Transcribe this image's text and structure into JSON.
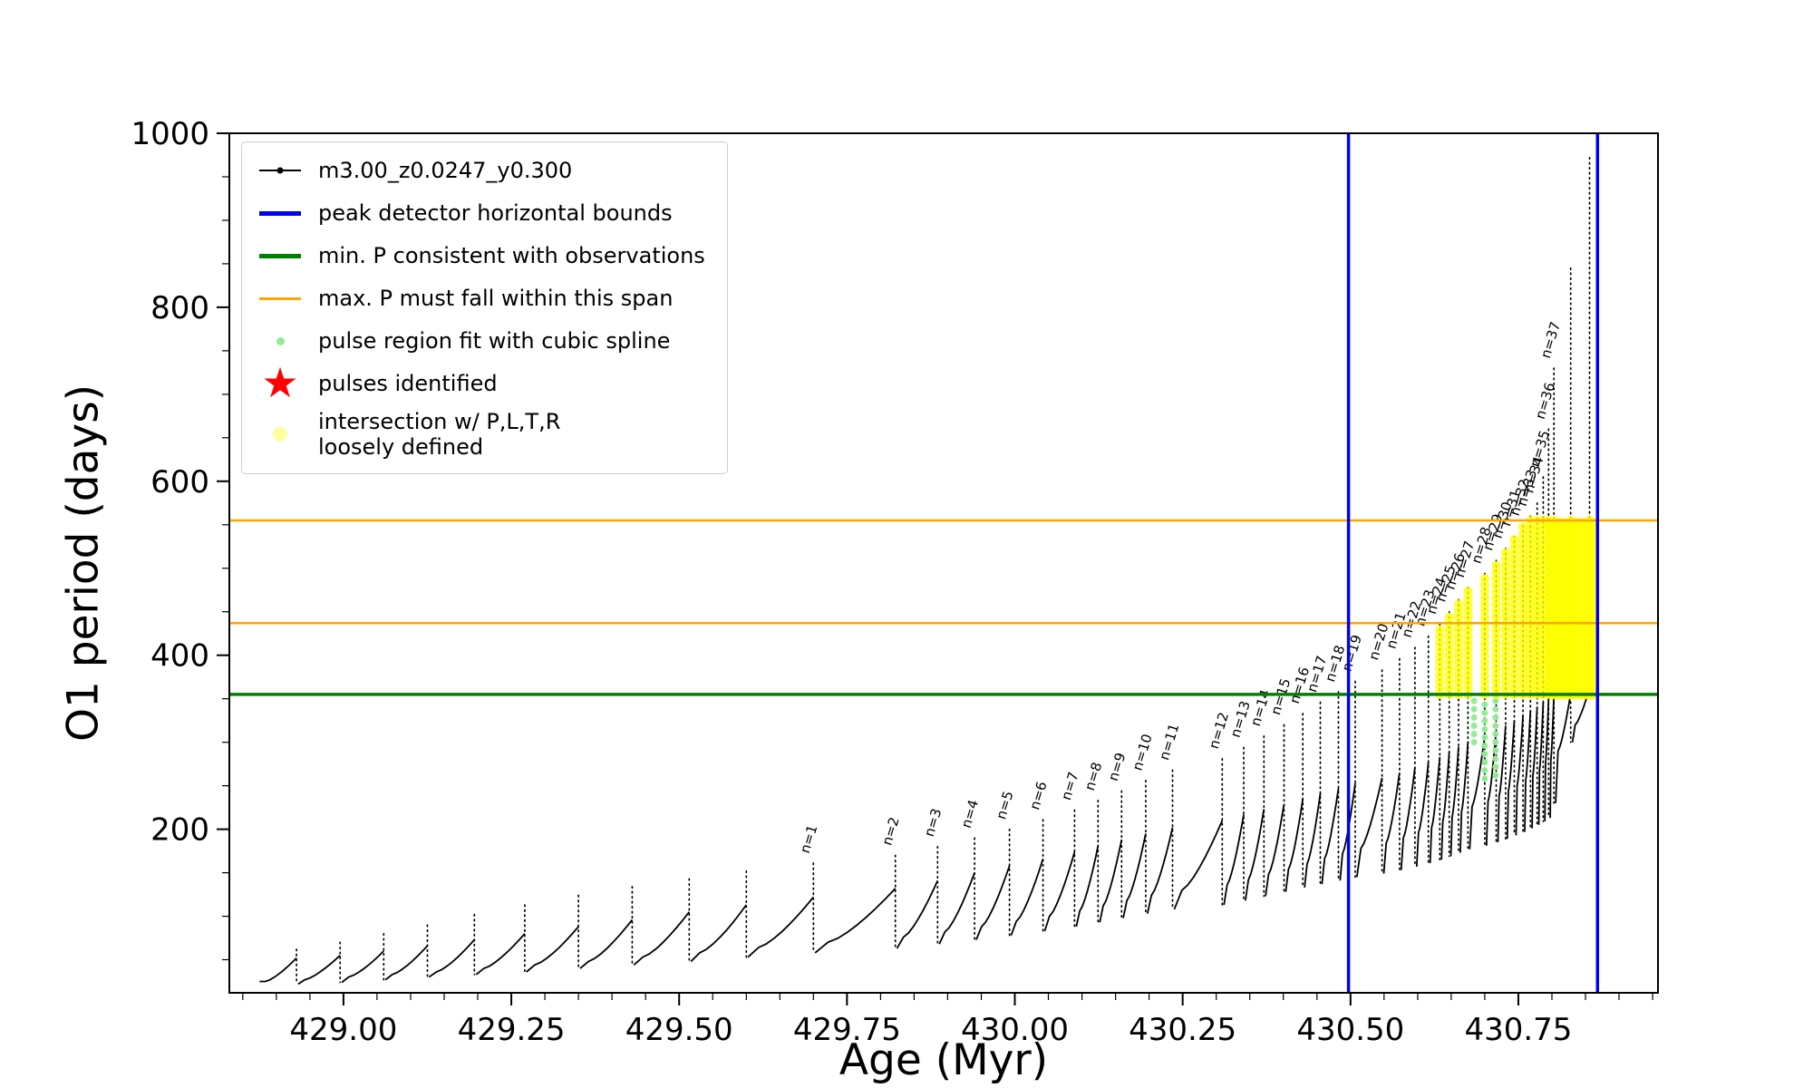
{
  "legend": {
    "star_glyph": "★",
    "items": [
      {
        "label": "m3.00_z0.0247_y0.300",
        "marker": "line-dot",
        "color": "#000000"
      },
      {
        "label": "peak detector horizontal bounds",
        "marker": "thick-line",
        "color": "#0000ee"
      },
      {
        "label": "min. P consistent with observations",
        "marker": "thick-line",
        "color": "#008000"
      },
      {
        "label": "max. P must fall within this span",
        "marker": "line",
        "color": "#ffa500"
      },
      {
        "label": "pulse region fit with cubic spline",
        "marker": "dot-small",
        "color": "#90ee90"
      },
      {
        "label": "pulses identified",
        "marker": "star",
        "color": "#ff0000"
      },
      {
        "label": "intersection w/ P,L,T,R\nloosely defined",
        "marker": "dot-large",
        "color": "#ffff9e"
      }
    ]
  },
  "chart_data": {
    "type": "line",
    "title": "",
    "xlabel": "Age (Myr)",
    "ylabel": "O1 period (days)",
    "series_label": "m3.00_z0.0247_y0.300",
    "xlim": [
      428.83,
      430.958
    ],
    "ylim": [
      12,
      1000
    ],
    "xticks": [
      429.0,
      429.25,
      429.5,
      429.75,
      430.0,
      430.25,
      430.5,
      430.75
    ],
    "xtick_labels": [
      "429.00",
      "429.25",
      "429.50",
      "429.75",
      "430.00",
      "430.25",
      "430.50",
      "430.75"
    ],
    "yticks": [
      200,
      400,
      600,
      800,
      1000
    ],
    "ytick_labels": [
      "200",
      "400",
      "600",
      "800",
      "1000"
    ],
    "minor_x_step": 0.05,
    "minor_y_step": 50,
    "grid": false,
    "legend_position": "upper left",
    "frame": {
      "l": 253,
      "t": 147,
      "r": 1829,
      "b": 1095
    },
    "colors": {
      "track": "#000000",
      "blue": "#0000ee",
      "green": "#008000",
      "orange": "#ffa500",
      "yellow": "#ffff00",
      "lightgreen": "#90ee90",
      "red": "#ff0000"
    },
    "hlines": [
      {
        "name": "min-P-line",
        "y": 355,
        "color": "#008000",
        "width": 3.5
      },
      {
        "name": "max-P-span-lower",
        "y": 437,
        "color": "#ffa500",
        "width": 2.5
      },
      {
        "name": "max-P-span-upper",
        "y": 555,
        "color": "#ffa500",
        "width": 2.5
      }
    ],
    "vlines": [
      {
        "name": "peak-detector-left-bound",
        "x": 430.497,
        "color": "#0000ee",
        "width": 3.5
      },
      {
        "name": "peak-detector-right-bound",
        "x": 430.868,
        "color": "#0000ee",
        "width": 3.5
      }
    ],
    "pulses": [
      {
        "t": 428.93,
        "lo": 25,
        "hi": 52,
        "peak": 62,
        "dip": 22
      },
      {
        "t": 428.995,
        "lo": 27,
        "hi": 55,
        "peak": 70,
        "dip": 24
      },
      {
        "t": 429.06,
        "lo": 30,
        "hi": 60,
        "peak": 80,
        "dip": 27
      },
      {
        "t": 429.125,
        "lo": 33,
        "hi": 66,
        "peak": 90,
        "dip": 30
      },
      {
        "t": 429.195,
        "lo": 36,
        "hi": 73,
        "peak": 102,
        "dip": 33
      },
      {
        "t": 429.27,
        "lo": 40,
        "hi": 80,
        "peak": 113,
        "dip": 36
      },
      {
        "t": 429.35,
        "lo": 44,
        "hi": 88,
        "peak": 124,
        "dip": 40
      },
      {
        "t": 429.43,
        "lo": 48,
        "hi": 96,
        "peak": 134,
        "dip": 44
      },
      {
        "t": 429.515,
        "lo": 53,
        "hi": 105,
        "peak": 143,
        "dip": 48
      },
      {
        "t": 429.6,
        "lo": 58,
        "hi": 113,
        "peak": 152,
        "dip": 53
      },
      {
        "n": 1,
        "label": "n=1",
        "t": 429.7,
        "lo": 64,
        "hi": 122,
        "peak": 161,
        "dip": 58
      },
      {
        "n": 2,
        "label": "n=2",
        "t": 429.822,
        "lo": 70,
        "hi": 132,
        "peak": 170,
        "dip": 63
      },
      {
        "n": 3,
        "label": "n=3",
        "t": 429.885,
        "lo": 76,
        "hi": 141,
        "peak": 180,
        "dip": 68
      },
      {
        "n": 4,
        "label": "n=4",
        "t": 429.94,
        "lo": 82,
        "hi": 150,
        "peak": 190,
        "dip": 73
      },
      {
        "n": 5,
        "label": "n=5",
        "t": 429.992,
        "lo": 88,
        "hi": 158,
        "peak": 200,
        "dip": 78
      },
      {
        "n": 6,
        "label": "n=6",
        "t": 430.042,
        "lo": 94,
        "hi": 166,
        "peak": 211,
        "dip": 83
      },
      {
        "n": 7,
        "label": "n=7",
        "t": 430.089,
        "lo": 100,
        "hi": 174,
        "peak": 222,
        "dip": 88
      },
      {
        "n": 8,
        "label": "n=8",
        "t": 430.124,
        "lo": 106,
        "hi": 181,
        "peak": 233,
        "dip": 93
      },
      {
        "n": 9,
        "label": "n=9",
        "t": 430.159,
        "lo": 112,
        "hi": 188,
        "peak": 244,
        "dip": 98
      },
      {
        "n": 10,
        "label": "n=10",
        "t": 430.195,
        "lo": 118,
        "hi": 195,
        "peak": 256,
        "dip": 103
      },
      {
        "n": 11,
        "label": "n=11",
        "t": 430.235,
        "lo": 124,
        "hi": 202,
        "peak": 268,
        "dip": 108
      },
      {
        "n": 12,
        "label": "n=12",
        "t": 430.309,
        "lo": 130,
        "hi": 210,
        "peak": 281,
        "dip": 113
      },
      {
        "n": 13,
        "label": "n=13",
        "t": 430.341,
        "lo": 136,
        "hi": 217,
        "peak": 294,
        "dip": 118
      },
      {
        "n": 14,
        "label": "n=14",
        "t": 430.371,
        "lo": 142,
        "hi": 223,
        "peak": 307,
        "dip": 123
      },
      {
        "n": 15,
        "label": "n=15",
        "t": 430.401,
        "lo": 148,
        "hi": 229,
        "peak": 320,
        "dip": 128
      },
      {
        "n": 16,
        "label": "n=16",
        "t": 430.429,
        "lo": 154,
        "hi": 235,
        "peak": 333,
        "dip": 133
      },
      {
        "n": 17,
        "label": "n=17",
        "t": 430.455,
        "lo": 160,
        "hi": 241,
        "peak": 346,
        "dip": 137
      },
      {
        "n": 18,
        "label": "n=18",
        "t": 430.482,
        "lo": 166,
        "hi": 247,
        "peak": 358,
        "dip": 141
      },
      {
        "n": 19,
        "label": "n=19",
        "t": 430.507,
        "lo": 172,
        "hi": 253,
        "peak": 370,
        "dip": 145
      },
      {
        "n": 20,
        "label": "n=20",
        "t": 430.547,
        "lo": 178,
        "hi": 259,
        "peak": 383,
        "dip": 149
      },
      {
        "n": 21,
        "label": "n=21",
        "t": 430.573,
        "lo": 184,
        "hi": 265,
        "peak": 396,
        "dip": 153
      },
      {
        "n": 22,
        "label": "n=22",
        "t": 430.596,
        "lo": 190,
        "hi": 271,
        "peak": 409,
        "dip": 157
      },
      {
        "n": 23,
        "label": "n=23",
        "t": 430.616,
        "lo": 196,
        "hi": 277,
        "peak": 422,
        "dip": 161
      },
      {
        "n": 24,
        "label": "n=24",
        "t": 430.633,
        "lo": 202,
        "hi": 283,
        "peak": 436,
        "dip": 165
      },
      {
        "n": 25,
        "label": "n=25",
        "t": 430.647,
        "lo": 208,
        "hi": 289,
        "peak": 450,
        "dip": 169
      },
      {
        "n": 26,
        "label": "n=26",
        "t": 430.661,
        "lo": 214,
        "hi": 295,
        "peak": 464,
        "dip": 173
      },
      {
        "n": 27,
        "label": "n=27",
        "t": 430.675,
        "lo": 220,
        "hi": 301,
        "peak": 478,
        "dip": 177
      },
      {
        "n": 28,
        "label": "n=28",
        "t": 430.7,
        "lo": 226,
        "hi": 307,
        "peak": 494,
        "dip": 181
      },
      {
        "n": 29,
        "label": "n=29",
        "t": 430.717,
        "lo": 232,
        "hi": 313,
        "peak": 509,
        "dip": 185
      },
      {
        "n": 30,
        "label": "n=30",
        "t": 430.731,
        "lo": 238,
        "hi": 319,
        "peak": 523,
        "dip": 189
      },
      {
        "n": 31,
        "label": "n=31",
        "t": 430.744,
        "lo": 244,
        "hi": 325,
        "peak": 537,
        "dip": 193
      },
      {
        "n": 32,
        "label": "n=32",
        "t": 430.757,
        "lo": 250,
        "hi": 331,
        "peak": 549,
        "dip": 197
      },
      {
        "n": 33,
        "label": "n=33",
        "t": 430.768,
        "lo": 256,
        "hi": 336,
        "peak": 560,
        "dip": 201
      },
      {
        "n": 34,
        "label": "n=34",
        "t": 430.778,
        "lo": 262,
        "hi": 341,
        "peak": 575,
        "dip": 205
      },
      {
        "n": 35,
        "label": "n=35",
        "t": 430.787,
        "lo": 268,
        "hi": 346,
        "peak": 605,
        "dip": 209
      },
      {
        "n": 36,
        "label": "n=36",
        "t": 430.795,
        "lo": 274,
        "hi": 350,
        "peak": 660,
        "dip": 213
      },
      {
        "n": 37,
        "label": "n=37",
        "t": 430.803,
        "lo": 280,
        "hi": 354,
        "peak": 730,
        "dip": 230
      },
      {
        "t": 430.828,
        "lo": 290,
        "hi": 356,
        "peak": 845,
        "dip": 300
      },
      {
        "t": 430.856,
        "lo": 320,
        "hi": 362,
        "peak": 972,
        "dip": 520
      }
    ],
    "yellow": {
      "band": [
        355,
        557
      ],
      "t_min": 430.62,
      "peak_min": 370,
      "extra_ts": [
        430.8,
        430.806,
        430.812,
        430.818,
        430.824,
        430.83,
        430.836,
        430.842,
        430.848,
        430.854,
        430.86
      ]
    },
    "green_columns": [
      {
        "t": 430.684,
        "v1": 300,
        "v2": 352
      },
      {
        "t": 430.7,
        "v1": 258,
        "v2": 350
      },
      {
        "t": 430.716,
        "v1": 262,
        "v2": 350
      }
    ]
  }
}
